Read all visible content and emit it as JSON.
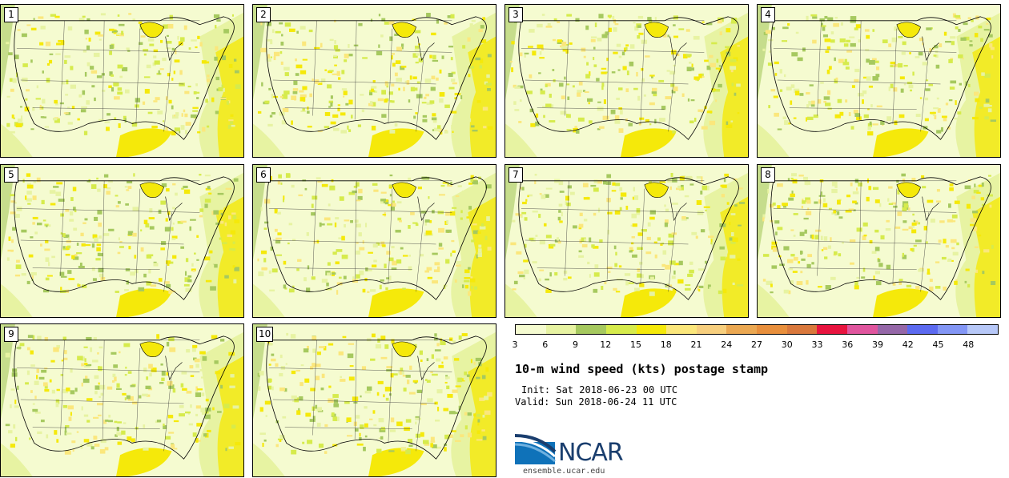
{
  "panels": [
    {
      "label": "1"
    },
    {
      "label": "2"
    },
    {
      "label": "3"
    },
    {
      "label": "4"
    },
    {
      "label": "5"
    },
    {
      "label": "6"
    },
    {
      "label": "7"
    },
    {
      "label": "8"
    },
    {
      "label": "9"
    },
    {
      "label": "10"
    }
  ],
  "legend": {
    "ticks": [
      "3",
      "6",
      "9",
      "12",
      "15",
      "18",
      "21",
      "24",
      "27",
      "30",
      "33",
      "36",
      "39",
      "42",
      "45",
      "48"
    ],
    "colors": [
      "#f5fbd0",
      "#e7f3a2",
      "#a6c95f",
      "#d6eb4c",
      "#f5e90a",
      "#fbe77c",
      "#f7cf7e",
      "#eba852",
      "#e88f3c",
      "#d9783c",
      "#e8143f",
      "#e0559e",
      "#9567a8",
      "#5c6af0",
      "#8396f5",
      "#b7c8f8"
    ]
  },
  "title": "10-m wind speed (kts) postage stamp",
  "init": "Init: Sat 2018-06-23 00 UTC",
  "valid": "Valid: Sun 2018-06-24 11 UTC",
  "logo": {
    "name": "NCAR",
    "url": "ensemble.ucar.edu"
  }
}
